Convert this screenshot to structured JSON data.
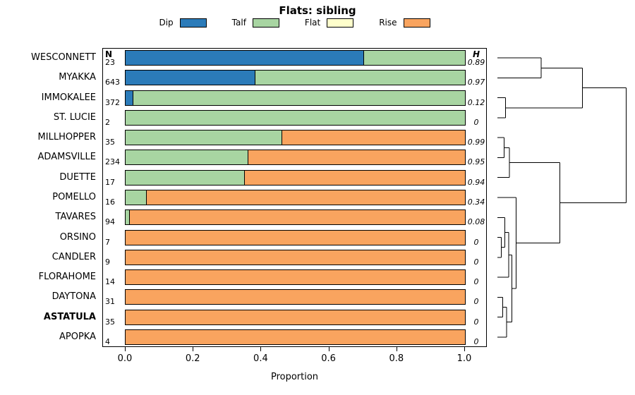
{
  "chart_data": {
    "type": "bar",
    "variant": "horizontal-stacked-with-dendrogram",
    "title": "Flats: sibling",
    "xlabel": "Proportion",
    "xlim": [
      0,
      1
    ],
    "xticks": [
      "0.0",
      "0.2",
      "0.4",
      "0.6",
      "0.8",
      "1.0"
    ],
    "n_header": "N",
    "h_header": "H",
    "grid": false,
    "legend_position": "top",
    "legend": [
      {
        "label": "Dip",
        "color": "#2b7bb9"
      },
      {
        "label": "Talf",
        "color": "#a8d5a2"
      },
      {
        "label": "Flat",
        "color": "#ffffcc"
      },
      {
        "label": "Rise",
        "color": "#f9a45f"
      }
    ],
    "rows": [
      {
        "label": "WESCONNETT",
        "n": "23",
        "h": "0.89",
        "bold": false,
        "values": {
          "Dip": 0.7,
          "Talf": 0.3,
          "Flat": 0,
          "Rise": 0
        }
      },
      {
        "label": "MYAKKA",
        "n": "643",
        "h": "0.97",
        "bold": false,
        "values": {
          "Dip": 0.38,
          "Talf": 0.62,
          "Flat": 0,
          "Rise": 0
        }
      },
      {
        "label": "IMMOKALEE",
        "n": "372",
        "h": "0.12",
        "bold": false,
        "values": {
          "Dip": 0.02,
          "Talf": 0.98,
          "Flat": 0,
          "Rise": 0
        }
      },
      {
        "label": "ST. LUCIE",
        "n": "2",
        "h": "0",
        "bold": false,
        "values": {
          "Dip": 0,
          "Talf": 1.0,
          "Flat": 0,
          "Rise": 0
        }
      },
      {
        "label": "MILLHOPPER",
        "n": "35",
        "h": "0.99",
        "bold": false,
        "values": {
          "Dip": 0,
          "Talf": 0.46,
          "Flat": 0,
          "Rise": 0.54
        }
      },
      {
        "label": "ADAMSVILLE",
        "n": "234",
        "h": "0.95",
        "bold": false,
        "values": {
          "Dip": 0,
          "Talf": 0.36,
          "Flat": 0,
          "Rise": 0.64
        }
      },
      {
        "label": "DUETTE",
        "n": "17",
        "h": "0.94",
        "bold": false,
        "values": {
          "Dip": 0,
          "Talf": 0.35,
          "Flat": 0,
          "Rise": 0.65
        }
      },
      {
        "label": "POMELLO",
        "n": "16",
        "h": "0.34",
        "bold": false,
        "values": {
          "Dip": 0,
          "Talf": 0.06,
          "Flat": 0,
          "Rise": 0.94
        }
      },
      {
        "label": "TAVARES",
        "n": "94",
        "h": "0.08",
        "bold": false,
        "values": {
          "Dip": 0,
          "Talf": 0.01,
          "Flat": 0,
          "Rise": 0.99
        }
      },
      {
        "label": "ORSINO",
        "n": "7",
        "h": "0",
        "bold": false,
        "values": {
          "Dip": 0,
          "Talf": 0,
          "Flat": 0,
          "Rise": 1.0
        }
      },
      {
        "label": "CANDLER",
        "n": "9",
        "h": "0",
        "bold": false,
        "values": {
          "Dip": 0,
          "Talf": 0,
          "Flat": 0,
          "Rise": 1.0
        }
      },
      {
        "label": "FLORAHOME",
        "n": "14",
        "h": "0",
        "bold": false,
        "values": {
          "Dip": 0,
          "Talf": 0,
          "Flat": 0,
          "Rise": 1.0
        }
      },
      {
        "label": "DAYTONA",
        "n": "31",
        "h": "0",
        "bold": false,
        "values": {
          "Dip": 0,
          "Talf": 0,
          "Flat": 0,
          "Rise": 1.0
        }
      },
      {
        "label": "ASTATULA",
        "n": "35",
        "h": "0",
        "bold": true,
        "values": {
          "Dip": 0,
          "Talf": 0,
          "Flat": 0,
          "Rise": 1.0
        }
      },
      {
        "label": "APOPKA",
        "n": "4",
        "h": "0",
        "bold": false,
        "values": {
          "Dip": 0,
          "Talf": 0,
          "Flat": 0,
          "Rise": 1.0
        }
      }
    ],
    "dendrogram": {
      "note": "R hclust-style merges: negative = leaf (1-indexed top to bottom), positive = prior merge; h = normalized join height 0-1",
      "merges": [
        [
          -1,
          -2,
          0.33
        ],
        [
          -3,
          -4,
          0.06
        ],
        [
          1,
          2,
          0.64
        ],
        [
          -5,
          -6,
          0.05
        ],
        [
          4,
          -7,
          0.09
        ],
        [
          -10,
          -11,
          0.03
        ],
        [
          -9,
          6,
          0.055
        ],
        [
          7,
          -12,
          0.085
        ],
        [
          -13,
          -14,
          0.04
        ],
        [
          9,
          -15,
          0.07
        ],
        [
          8,
          10,
          0.11
        ],
        [
          -8,
          11,
          0.14
        ],
        [
          5,
          12,
          0.47
        ],
        [
          3,
          13,
          0.97
        ]
      ]
    }
  }
}
